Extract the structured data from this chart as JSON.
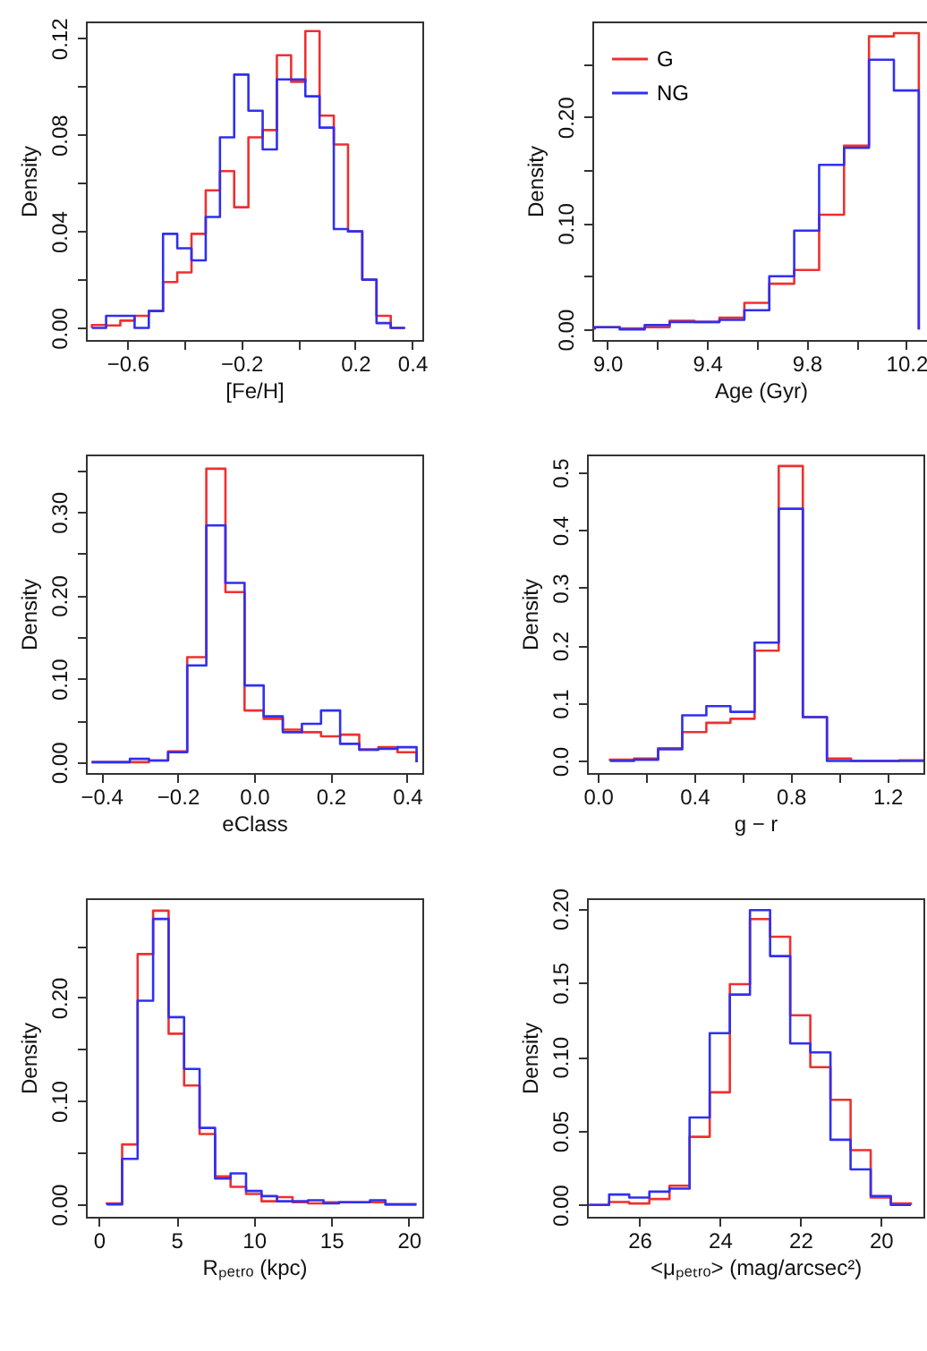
{
  "chart_data": [
    {
      "type": "histogram",
      "xlabel": "[Fe/H]",
      "ylabel": "Density",
      "xlim": [
        -0.746,
        0.436
      ],
      "ylim": [
        -0.005,
        0.127
      ],
      "xticks": [
        {
          "value": -0.6,
          "label": "−0.6"
        },
        {
          "value": -0.4,
          "label": null
        },
        {
          "value": -0.2,
          "label": "−0.2"
        },
        {
          "value": 0,
          "label": null
        },
        {
          "value": 0.2,
          "label": "0.2"
        },
        {
          "value": 0.4,
          "label": "0.4"
        }
      ],
      "yticks": [
        {
          "value": 0,
          "label": "0.00"
        },
        {
          "value": 0.02,
          "label": null
        },
        {
          "value": 0.04,
          "label": "0.04"
        },
        {
          "value": 0.06,
          "label": null
        },
        {
          "value": 0.08,
          "label": "0.08"
        },
        {
          "value": 0.1,
          "label": null
        },
        {
          "value": 0.12,
          "label": "0.12"
        }
      ],
      "bins": [
        -0.725,
        -0.675,
        -0.625,
        -0.575,
        -0.525,
        -0.475,
        -0.425,
        -0.375,
        -0.325,
        -0.275,
        -0.225,
        -0.175,
        -0.125,
        -0.075,
        -0.025,
        0.025,
        0.075,
        0.125,
        0.175,
        0.225,
        0.275,
        0.325,
        0.375
      ],
      "series": [
        {
          "color": "#ee3030",
          "values": [
            0.0012,
            0.001,
            0.003,
            0.005,
            0.007,
            0.019,
            0.023,
            0.039,
            0.057,
            0.065,
            0.05,
            0.079,
            0.082,
            0.113,
            0.102,
            0.123,
            0.088,
            0.076,
            0.04,
            0.02,
            0.005,
            0
          ]
        },
        {
          "color": "#3030ee",
          "values": [
            0,
            0.005,
            0.005,
            0,
            0.007,
            0.039,
            0.033,
            0.028,
            0.046,
            0.079,
            0.105,
            0.09,
            0.074,
            0.103,
            0.103,
            0.096,
            0.083,
            0.041,
            0.04,
            0.02,
            0.002,
            0
          ]
        }
      ]
    },
    {
      "type": "histogram",
      "xlabel": "Age (Gyr)",
      "ylabel": "Density",
      "xlim": [
        8.94,
        10.29
      ],
      "ylim": [
        -0.01,
        0.29
      ],
      "legend": "top left",
      "xticks": [
        {
          "value": 9.0,
          "label": "9.0"
        },
        {
          "value": 9.2,
          "label": null
        },
        {
          "value": 9.4,
          "label": "9.4"
        },
        {
          "value": 9.6,
          "label": null
        },
        {
          "value": 9.8,
          "label": "9.8"
        },
        {
          "value": 10.0,
          "label": null
        },
        {
          "value": 10.2,
          "label": "10.2"
        }
      ],
      "yticks": [
        {
          "value": 0,
          "label": "0.00"
        },
        {
          "value": 0.05,
          "label": null
        },
        {
          "value": 0.1,
          "label": "0.10"
        },
        {
          "value": 0.15,
          "label": null
        },
        {
          "value": 0.2,
          "label": "0.20"
        },
        {
          "value": 0.25,
          "label": null
        }
      ],
      "bins": [
        8.95,
        9.05,
        9.15,
        9.25,
        9.35,
        9.45,
        9.55,
        9.65,
        9.75,
        9.85,
        9.95,
        10.05,
        10.15,
        10.25
      ],
      "series": [
        {
          "name": "G",
          "color": "#ee3030",
          "values": [
            0.002,
            0.001,
            0.002,
            0.008,
            0.007,
            0.011,
            0.025,
            0.043,
            0.056,
            0.108,
            0.173,
            0.276,
            0.279
          ]
        },
        {
          "name": "NG",
          "color": "#3030ee",
          "values": [
            0.002,
            0,
            0.004,
            0.007,
            0.007,
            0.009,
            0.018,
            0.05,
            0.093,
            0.155,
            0.171,
            0.254,
            0.225
          ]
        }
      ]
    },
    {
      "type": "histogram",
      "xlabel": "eClass",
      "ylabel": "Density",
      "xlim": [
        -0.44,
        0.44
      ],
      "ylim": [
        -0.013,
        0.369
      ],
      "xticks": [
        {
          "value": -0.4,
          "label": "−0.4"
        },
        {
          "value": -0.2,
          "label": "−0.2"
        },
        {
          "value": 0,
          "label": "0.0"
        },
        {
          "value": 0.2,
          "label": "0.2"
        },
        {
          "value": 0.4,
          "label": "0.4"
        }
      ],
      "yticks": [
        {
          "value": 0,
          "label": "0.00"
        },
        {
          "value": 0.05,
          "label": null
        },
        {
          "value": 0.1,
          "label": "0.10"
        },
        {
          "value": 0.15,
          "label": null
        },
        {
          "value": 0.2,
          "label": "0.20"
        },
        {
          "value": 0.25,
          "label": null
        },
        {
          "value": 0.3,
          "label": "0.30"
        },
        {
          "value": 0.35,
          "label": null
        }
      ],
      "bins": [
        -0.425,
        -0.375,
        -0.325,
        -0.275,
        -0.225,
        -0.175,
        -0.125,
        -0.075,
        -0.025,
        0.025,
        0.075,
        0.125,
        0.175,
        0.225,
        0.275,
        0.325,
        0.375,
        0.425
      ],
      "series": [
        {
          "color": "#ee3030",
          "values": [
            0,
            0,
            0,
            0.002,
            0.013,
            0.126,
            0.352,
            0.204,
            0.062,
            0.052,
            0.039,
            0.036,
            0.031,
            0.033,
            0.015,
            0.018,
            0.012
          ]
        },
        {
          "color": "#3030ee",
          "values": [
            0,
            0,
            0.004,
            0.002,
            0.012,
            0.116,
            0.284,
            0.215,
            0.092,
            0.055,
            0.036,
            0.046,
            0.062,
            0.022,
            0.015,
            0.016,
            0.018
          ]
        }
      ]
    },
    {
      "type": "histogram",
      "xlabel": "g − r",
      "ylabel": "Density",
      "xlim": [
        -0.045,
        1.35
      ],
      "ylim": [
        -0.021,
        0.531
      ],
      "xticks": [
        {
          "value": 0,
          "label": "0.0"
        },
        {
          "value": 0.2,
          "label": null
        },
        {
          "value": 0.4,
          "label": "0.4"
        },
        {
          "value": 0.6,
          "label": null
        },
        {
          "value": 0.8,
          "label": "0.8"
        },
        {
          "value": 1.0,
          "label": null
        },
        {
          "value": 1.2,
          "label": "1.2"
        }
      ],
      "yticks": [
        {
          "value": 0,
          "label": "0.0"
        },
        {
          "value": 0.1,
          "label": "0.1"
        },
        {
          "value": 0.2,
          "label": "0.2"
        },
        {
          "value": 0.3,
          "label": "0.3"
        },
        {
          "value": 0.4,
          "label": "0.4"
        },
        {
          "value": 0.5,
          "label": "0.5"
        }
      ],
      "bins": [
        0.05,
        0.15,
        0.25,
        0.35,
        0.45,
        0.55,
        0.65,
        0.75,
        0.85,
        0.95,
        1.05,
        1.15,
        1.25,
        1.35
      ],
      "series": [
        {
          "color": "#ee3030",
          "values": [
            0.002,
            0.004,
            0.022,
            0.05,
            0.066,
            0.073,
            0.191,
            0.511,
            0.076,
            0.004,
            0,
            0,
            0.001
          ]
        },
        {
          "color": "#3030ee",
          "values": [
            0,
            0.002,
            0.02,
            0.079,
            0.095,
            0.085,
            0.205,
            0.437,
            0.076,
            0,
            0,
            0,
            0
          ]
        }
      ]
    },
    {
      "type": "histogram",
      "xlabel": "Rₚₑₜᵣₒ (kpc)",
      "ylabel": "Density",
      "xlim": [
        -0.84,
        20.88
      ],
      "ylim": [
        -0.012,
        0.296
      ],
      "xticks": [
        0,
        5,
        10,
        15,
        20
      ],
      "yticks": [
        {
          "value": 0,
          "label": "0.00"
        },
        {
          "value": 0.05,
          "label": null
        },
        {
          "value": 0.1,
          "label": "0.10"
        },
        {
          "value": 0.15,
          "label": null
        },
        {
          "value": 0.2,
          "label": "0.20"
        },
        {
          "value": 0.25,
          "label": null
        }
      ],
      "bins": [
        0.5,
        1.5,
        2.5,
        3.5,
        4.5,
        5.5,
        6.5,
        7.5,
        8.5,
        9.5,
        10.5,
        11.5,
        12.5,
        13.5,
        14.5,
        15.5,
        16.5,
        17.5,
        18.5,
        19.5,
        20.5
      ],
      "series": [
        {
          "color": "#ee3030",
          "values": [
            0.001,
            0.058,
            0.242,
            0.284,
            0.165,
            0.115,
            0.068,
            0.027,
            0.017,
            0.01,
            0.003,
            0.007,
            0.002,
            0.001,
            0.002,
            0.002,
            0.002,
            0.002,
            0,
            0
          ]
        },
        {
          "color": "#3030ee",
          "values": [
            0,
            0.044,
            0.197,
            0.276,
            0.181,
            0.131,
            0.074,
            0.025,
            0.03,
            0.013,
            0.008,
            0.003,
            0.003,
            0.004,
            0.001,
            0.002,
            0.002,
            0.004,
            0,
            0
          ]
        }
      ]
    },
    {
      "type": "histogram",
      "xlabel": "<μₚₑₜᵣₒ> (mag/arcsec²)",
      "ylabel": "Density",
      "xlim": [
        27.3,
        18.94
      ],
      "ylim": [
        -0.008,
        0.207
      ],
      "xticks": [
        26,
        24,
        22,
        20
      ],
      "yticks": [
        {
          "value": 0,
          "label": "0.00"
        },
        {
          "value": 0.05,
          "label": "0.05"
        },
        {
          "value": 0.1,
          "label": "0.10"
        },
        {
          "value": 0.15,
          "label": "0.15"
        },
        {
          "value": 0.2,
          "label": "0.20"
        }
      ],
      "bins": [
        27.25,
        26.75,
        26.25,
        25.75,
        25.25,
        24.75,
        24.25,
        23.75,
        23.25,
        22.75,
        22.25,
        21.75,
        21.25,
        20.75,
        20.25,
        19.75,
        19.25
      ],
      "series": [
        {
          "color": "#ee3030",
          "values": [
            0,
            0.002,
            0.001,
            0.004,
            0.013,
            0.046,
            0.076,
            0.149,
            0.193,
            0.181,
            0.128,
            0.093,
            0.071,
            0.037,
            0.005,
            0.001
          ]
        },
        {
          "color": "#3030ee",
          "values": [
            0,
            0.007,
            0.005,
            0.009,
            0.011,
            0.059,
            0.116,
            0.142,
            0.199,
            0.168,
            0.109,
            0.103,
            0.044,
            0.024,
            0.006,
            0
          ]
        }
      ]
    }
  ]
}
